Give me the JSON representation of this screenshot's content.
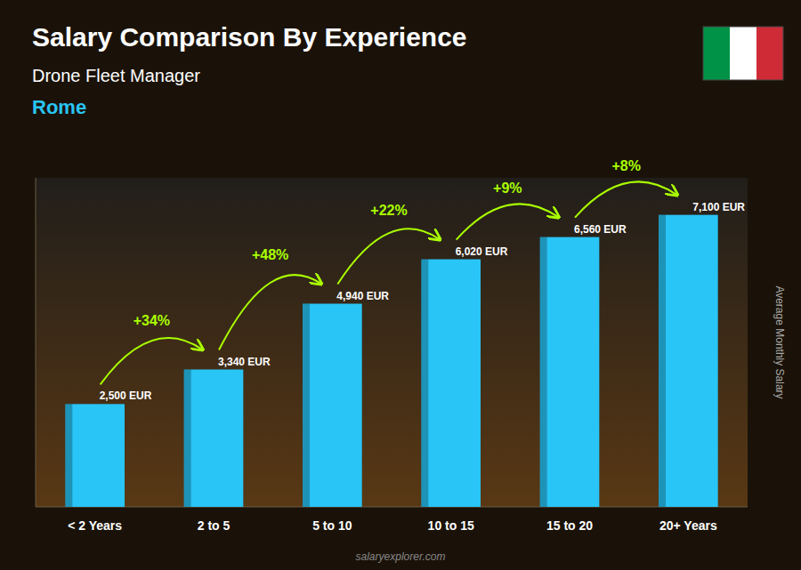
{
  "chart_data": {
    "type": "bar",
    "title": "Salary Comparison By Experience",
    "subtitle": "Drone Fleet Manager",
    "city": "Rome",
    "ylabel": "Average Monthly Salary",
    "watermark": "salaryexplorer.com",
    "categories": [
      "< 2 Years",
      "2 to 5",
      "5 to 10",
      "10 to 15",
      "15 to 20",
      "20+ Years"
    ],
    "values": [
      2500,
      3340,
      4940,
      6020,
      6560,
      7100
    ],
    "value_labels": [
      "2,500 EUR",
      "3,340 EUR",
      "4,940 EUR",
      "6,020 EUR",
      "6,560 EUR",
      "7,100 EUR"
    ],
    "annotations": [
      "+34%",
      "+48%",
      "+22%",
      "+9%",
      "+8%"
    ],
    "color": "#29C5F6",
    "ylim": [
      0,
      8000
    ],
    "data_labels": true,
    "tick_labels": "x",
    "grid": false
  }
}
